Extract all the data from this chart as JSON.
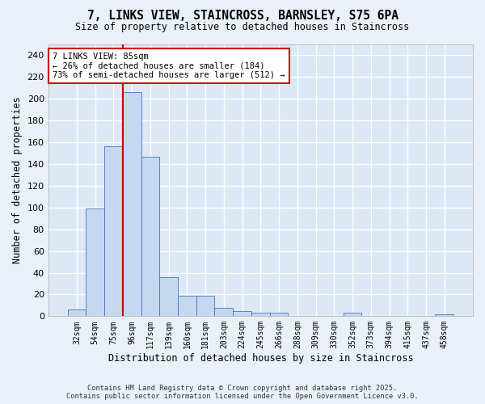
{
  "title": "7, LINKS VIEW, STAINCROSS, BARNSLEY, S75 6PA",
  "subtitle": "Size of property relative to detached houses in Staincross",
  "xlabel": "Distribution of detached houses by size in Staincross",
  "ylabel": "Number of detached properties",
  "categories": [
    "32sqm",
    "54sqm",
    "75sqm",
    "96sqm",
    "117sqm",
    "139sqm",
    "160sqm",
    "181sqm",
    "203sqm",
    "224sqm",
    "245sqm",
    "266sqm",
    "288sqm",
    "309sqm",
    "330sqm",
    "352sqm",
    "373sqm",
    "394sqm",
    "415sqm",
    "437sqm",
    "458sqm"
  ],
  "values": [
    6,
    99,
    156,
    206,
    147,
    36,
    19,
    19,
    8,
    5,
    3,
    3,
    0,
    0,
    0,
    3,
    0,
    0,
    0,
    0,
    2
  ],
  "bar_color": "#c5d8f0",
  "bar_edge_color": "#4472c4",
  "red_line_index": 2.5,
  "annotation_text": "7 LINKS VIEW: 85sqm\n← 26% of detached houses are smaller (184)\n73% of semi-detached houses are larger (512) →",
  "annotation_box_color": "#ffffff",
  "annotation_box_edge_color": "#cc0000",
  "red_line_color": "#cc0000",
  "ylim": [
    0,
    250
  ],
  "yticks": [
    0,
    20,
    40,
    60,
    80,
    100,
    120,
    140,
    160,
    180,
    200,
    220,
    240
  ],
  "background_color": "#dce8f5",
  "grid_color": "#ffffff",
  "fig_bg_color": "#eaf0f8",
  "footer_line1": "Contains HM Land Registry data © Crown copyright and database right 2025.",
  "footer_line2": "Contains public sector information licensed under the Open Government Licence v3.0."
}
